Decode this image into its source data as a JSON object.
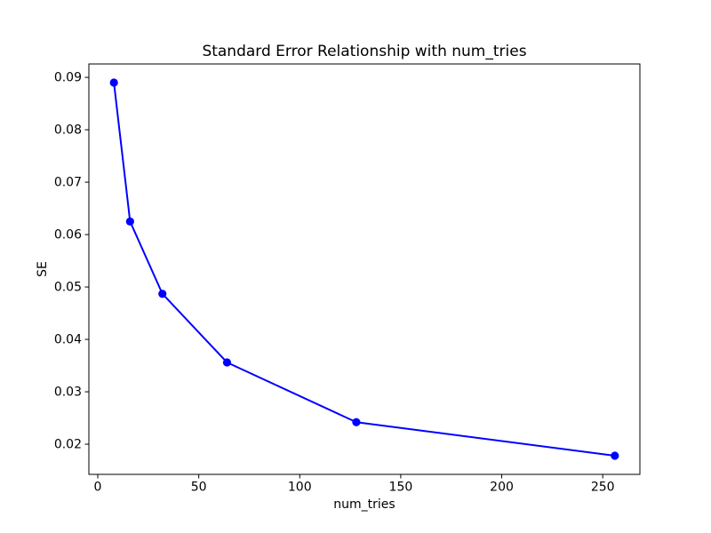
{
  "figure": {
    "background": "#ffffff"
  },
  "chart_data": {
    "type": "line",
    "title": "Standard Error Relationship with num_tries",
    "xlabel": "num_tries",
    "ylabel": "SE",
    "x": [
      8,
      16,
      32,
      64,
      128,
      256
    ],
    "y": [
      0.089,
      0.0625,
      0.0487,
      0.0356,
      0.0242,
      0.0178
    ],
    "series_name": "SE vs num_tries",
    "line_color": "#0000ff",
    "marker": "circle",
    "marker_color": "#0000ff",
    "xlim": [
      -4.4,
      268.4
    ],
    "ylim": [
      0.01424,
      0.09256
    ],
    "xticks": [
      0,
      50,
      100,
      150,
      200,
      250
    ],
    "yticks": [
      0.02,
      0.03,
      0.04,
      0.05,
      0.06,
      0.07,
      0.08,
      0.09
    ],
    "ytick_decimals": 2,
    "grid": false,
    "legend_position": "none",
    "axis_color": "#000000"
  }
}
